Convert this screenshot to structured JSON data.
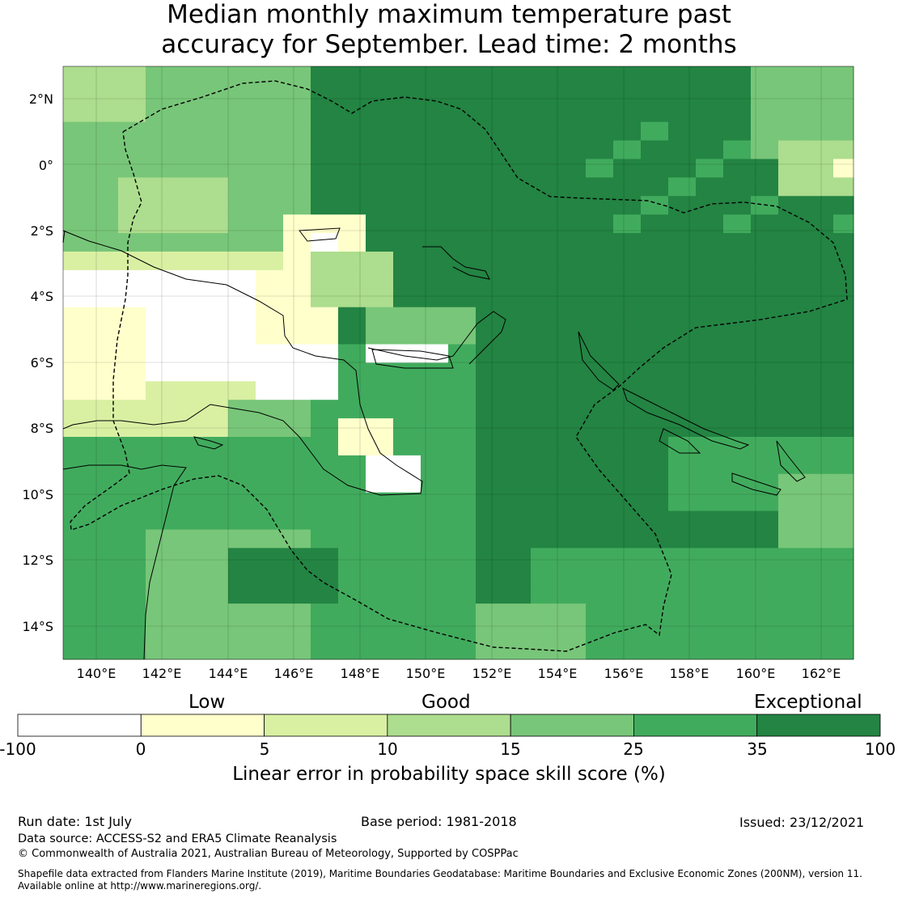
{
  "title": {
    "line1": "Median monthly maximum temperature past",
    "line2": "accuracy for September. Lead time: 2 months"
  },
  "map": {
    "lat_labels": [
      "2°N",
      "0°",
      "2°S",
      "4°S",
      "6°S",
      "8°S",
      "10°S",
      "12°S",
      "14°S"
    ],
    "lon_labels": [
      "140°E",
      "142°E",
      "144°E",
      "146°E",
      "148°E",
      "150°E",
      "152°E",
      "154°E",
      "156°E",
      "158°E",
      "160°E",
      "162°E"
    ],
    "lat_range": [
      -15,
      3
    ],
    "lon_range": [
      139,
      163
    ],
    "grid_resolution_deg": 0.833
  },
  "colorbar": {
    "category_labels": [
      "Low",
      "Good",
      "Exceptional"
    ],
    "ticks": [
      "-100",
      "0",
      "5",
      "10",
      "15",
      "25",
      "35",
      "100"
    ],
    "bins": [
      {
        "from": -100,
        "to": 0,
        "color": "#ffffff"
      },
      {
        "from": 0,
        "to": 5,
        "color": "#ffffcc"
      },
      {
        "from": 5,
        "to": 10,
        "color": "#d9f0a3"
      },
      {
        "from": 10,
        "to": 15,
        "color": "#addd8e"
      },
      {
        "from": 15,
        "to": 25,
        "color": "#78c679"
      },
      {
        "from": 25,
        "to": 35,
        "color": "#41ab5d"
      },
      {
        "from": 35,
        "to": 100,
        "color": "#238443"
      }
    ],
    "label": "Linear error in probability space skill score (%)"
  },
  "footer": {
    "run_date": "Run date: 1st July",
    "base_period": "Base period: 1981-2018",
    "issued": "Issued: 23/12/2021",
    "data_source": "Data source: ACCESS-S2 and ERA5 Climate Reanalysis",
    "copyright": "© Commonwealth of Australia 2021, Australian Bureau of Meteorology, Supported by COSPPac",
    "shapefile_line1": "Shapefile data extracted from Flanders Marine Institute (2019), Maritime Boundaries Geodatabase: Maritime Boundaries and Exclusive Economic Zones (200NM), version 11.",
    "shapefile_line2": "Available online at http://www.marineregions.org/."
  }
}
